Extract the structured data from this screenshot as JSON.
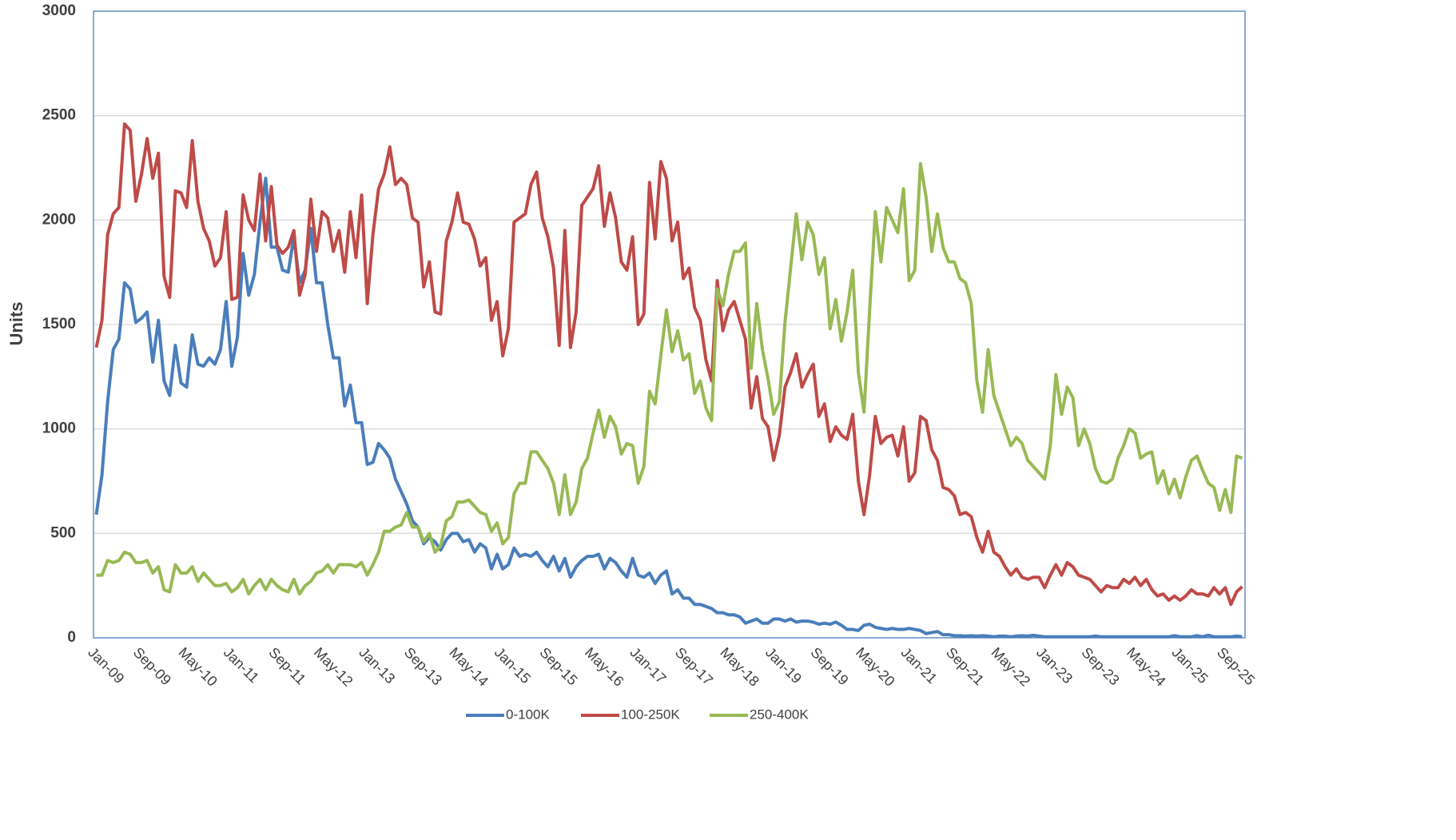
{
  "chart_data": {
    "type": "line",
    "y_label": "Units",
    "ylim": [
      0,
      3000
    ],
    "yticks": [
      0,
      500,
      1000,
      1500,
      2000,
      2500,
      3000
    ],
    "grid": true,
    "legend": "bottom",
    "categories": [
      "Jan-09",
      null,
      null,
      null,
      null,
      null,
      null,
      null,
      "Sep-09",
      null,
      null,
      null,
      null,
      null,
      null,
      null,
      "May-10",
      null,
      null,
      null,
      null,
      null,
      null,
      null,
      "Jan-11",
      null,
      null,
      null,
      null,
      null,
      null,
      null,
      "Sep-11",
      null,
      null,
      null,
      null,
      null,
      null,
      null,
      "May-12",
      null,
      null,
      null,
      null,
      null,
      null,
      null,
      "Jan-13",
      null,
      null,
      null,
      null,
      null,
      null,
      null,
      "Sep-13",
      null,
      null,
      null,
      null,
      null,
      null,
      null,
      "May-14",
      null,
      null,
      null,
      null,
      null,
      null,
      null,
      "Jan-15",
      null,
      null,
      null,
      null,
      null,
      null,
      null,
      "Sep-15",
      null,
      null,
      null,
      null,
      null,
      null,
      null,
      "May-16",
      null,
      null,
      null,
      null,
      null,
      null,
      null,
      "Jan-17",
      null,
      null,
      null,
      null,
      null,
      null,
      null,
      "Sep-17",
      null,
      null,
      null,
      null,
      null,
      null,
      null,
      "May-18",
      null,
      null,
      null,
      null,
      null,
      null,
      null,
      "Jan-19",
      null,
      null,
      null,
      null,
      null,
      null,
      null,
      "Sep-19",
      null,
      null,
      null,
      null,
      null,
      null,
      null,
      "May-20",
      null,
      null,
      null,
      null,
      null,
      null,
      null,
      "Jan-21",
      null,
      null,
      null,
      null,
      null,
      null,
      null,
      "Sep-21",
      null,
      null,
      null,
      null,
      null,
      null,
      null,
      "May-22",
      null,
      null,
      null,
      null,
      null,
      null,
      null,
      "Jan-23",
      null,
      null,
      null,
      null,
      null,
      null,
      null,
      "Sep-23",
      null,
      null,
      null,
      null,
      null,
      null,
      null,
      "May-24",
      null,
      null,
      null,
      null,
      null,
      null,
      null,
      "Jan-25",
      null,
      null,
      null,
      null,
      null,
      null,
      null,
      "Sep-25",
      null,
      null,
      null
    ],
    "series": [
      {
        "name": "0-100K",
        "color": "#4a7ebb",
        "values": [
          590,
          780,
          1130,
          1380,
          1430,
          1700,
          1670,
          1510,
          1530,
          1560,
          1320,
          1520,
          1230,
          1160,
          1400,
          1220,
          1200,
          1450,
          1310,
          1300,
          1340,
          1310,
          1380,
          1610,
          1300,
          1440,
          1840,
          1640,
          1740,
          1990,
          2200,
          1870,
          1870,
          1760,
          1750,
          1920,
          1700,
          1760,
          1960,
          1700,
          1700,
          1500,
          1340,
          1340,
          1110,
          1210,
          1030,
          1030,
          830,
          840,
          930,
          900,
          860,
          760,
          700,
          640,
          560,
          530,
          450,
          480,
          460,
          420,
          470,
          500,
          500,
          460,
          470,
          410,
          450,
          430,
          330,
          400,
          330,
          350,
          430,
          390,
          400,
          390,
          410,
          370,
          340,
          390,
          320,
          380,
          290,
          340,
          370,
          390,
          390,
          400,
          330,
          380,
          360,
          320,
          290,
          380,
          300,
          290,
          310,
          260,
          300,
          320,
          210,
          230,
          190,
          190,
          160,
          160,
          150,
          140,
          120,
          120,
          110,
          110,
          100,
          70,
          80,
          90,
          70,
          70,
          90,
          90,
          80,
          90,
          75,
          80,
          80,
          75,
          65,
          70,
          65,
          75,
          60,
          40,
          40,
          35,
          60,
          65,
          50,
          45,
          40,
          45,
          40,
          40,
          45,
          40,
          35,
          20,
          25,
          30,
          15,
          15,
          10,
          10,
          8,
          10,
          8,
          10,
          8,
          5,
          8,
          8,
          5,
          8,
          10,
          8,
          12,
          8,
          5,
          5,
          5,
          5,
          5,
          5,
          5,
          5,
          5,
          8,
          5,
          5,
          5,
          5,
          5,
          5,
          5,
          5,
          5,
          5,
          5,
          5,
          5,
          10,
          5,
          5,
          5,
          10,
          5,
          12,
          5,
          5,
          5,
          5,
          8,
          5
        ]
      },
      {
        "name": "100-250K",
        "color": "#be4b48",
        "values": [
          1390,
          1520,
          1930,
          2030,
          2060,
          2460,
          2430,
          2090,
          2220,
          2390,
          2200,
          2320,
          1730,
          1630,
          2140,
          2130,
          2060,
          2380,
          2090,
          1960,
          1900,
          1780,
          1820,
          2040,
          1620,
          1630,
          2120,
          2000,
          1950,
          2220,
          1900,
          2160,
          1880,
          1840,
          1870,
          1950,
          1640,
          1740,
          2100,
          1850,
          2040,
          2010,
          1850,
          1950,
          1750,
          2040,
          1820,
          2120,
          1600,
          1930,
          2150,
          2220,
          2350,
          2170,
          2200,
          2170,
          2010,
          1990,
          1680,
          1800,
          1560,
          1550,
          1900,
          1990,
          2130,
          1990,
          1980,
          1910,
          1780,
          1820,
          1520,
          1610,
          1350,
          1480,
          1990,
          2010,
          2030,
          2170,
          2230,
          2010,
          1920,
          1770,
          1400,
          1950,
          1390,
          1560,
          2070,
          2110,
          2150,
          2260,
          1970,
          2130,
          2010,
          1800,
          1760,
          1920,
          1500,
          1550,
          2180,
          1910,
          2280,
          2200,
          1900,
          1990,
          1720,
          1770,
          1580,
          1520,
          1330,
          1230,
          1710,
          1470,
          1570,
          1610,
          1520,
          1430,
          1100,
          1250,
          1050,
          1010,
          850,
          970,
          1200,
          1270,
          1360,
          1200,
          1260,
          1310,
          1060,
          1120,
          940,
          1010,
          970,
          950,
          1070,
          750,
          590,
          780,
          1060,
          930,
          960,
          970,
          870,
          1010,
          750,
          790,
          1060,
          1040,
          900,
          850,
          720,
          710,
          680,
          590,
          600,
          580,
          480,
          410,
          510,
          410,
          390,
          340,
          300,
          330,
          290,
          280,
          290,
          290,
          240,
          300,
          350,
          300,
          360,
          340,
          300,
          290,
          280,
          250,
          220,
          250,
          240,
          240,
          280,
          260,
          290,
          250,
          280,
          230,
          200,
          210,
          180,
          200,
          180,
          200,
          230,
          210,
          210,
          200,
          240,
          210,
          240,
          160,
          220,
          245
        ]
      },
      {
        "name": "250-400K",
        "color": "#98b954",
        "values": [
          300,
          300,
          370,
          360,
          370,
          410,
          400,
          360,
          360,
          370,
          310,
          340,
          230,
          220,
          350,
          310,
          310,
          340,
          270,
          310,
          280,
          250,
          250,
          260,
          220,
          240,
          280,
          210,
          250,
          280,
          230,
          280,
          250,
          230,
          220,
          280,
          210,
          250,
          270,
          310,
          320,
          350,
          310,
          350,
          350,
          350,
          340,
          360,
          300,
          350,
          410,
          510,
          510,
          530,
          540,
          600,
          530,
          530,
          460,
          500,
          410,
          440,
          560,
          580,
          650,
          650,
          660,
          630,
          600,
          590,
          510,
          550,
          450,
          480,
          690,
          740,
          740,
          890,
          890,
          850,
          810,
          740,
          590,
          780,
          590,
          650,
          810,
          860,
          980,
          1090,
          960,
          1060,
          1010,
          880,
          930,
          920,
          740,
          820,
          1180,
          1120,
          1350,
          1570,
          1370,
          1470,
          1330,
          1360,
          1170,
          1230,
          1100,
          1040,
          1670,
          1590,
          1740,
          1850,
          1850,
          1890,
          1290,
          1600,
          1380,
          1240,
          1070,
          1130,
          1510,
          1770,
          2030,
          1810,
          1990,
          1930,
          1740,
          1820,
          1480,
          1620,
          1420,
          1560,
          1760,
          1270,
          1080,
          1570,
          2040,
          1800,
          2060,
          2000,
          1940,
          2150,
          1710,
          1760,
          2270,
          2110,
          1850,
          2030,
          1870,
          1800,
          1800,
          1720,
          1700,
          1600,
          1230,
          1080,
          1380,
          1160,
          1080,
          1000,
          920,
          960,
          930,
          850,
          820,
          790,
          760,
          920,
          1260,
          1070,
          1200,
          1150,
          920,
          1000,
          930,
          810,
          750,
          740,
          760,
          860,
          920,
          1000,
          980,
          860,
          880,
          890,
          740,
          800,
          690,
          760,
          670,
          770,
          850,
          870,
          800,
          740,
          720,
          610,
          710,
          600,
          870,
          860
        ]
      }
    ]
  }
}
